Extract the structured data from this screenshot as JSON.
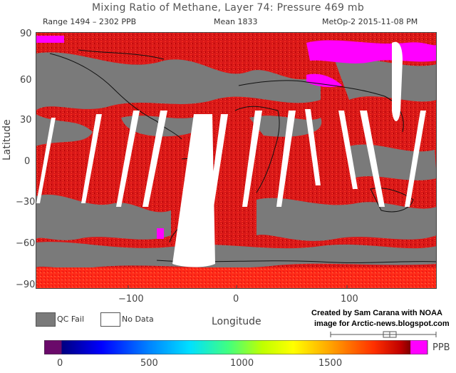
{
  "header": {
    "title": "Mixing Ratio of Methane, Layer 74: Pressure 469 mb",
    "range": "Range 1494 – 2302 PPB",
    "mean": "Mean 1833",
    "satellite": "MetOp-2 2015-11-08 PM"
  },
  "axes": {
    "ylabel": "Latitude",
    "xlabel": "Longitude",
    "y_ticks": [
      "90",
      "60",
      "30",
      "0",
      "−30",
      "−60",
      "−90"
    ],
    "x_ticks": [
      "−100",
      "0",
      "100"
    ]
  },
  "legend": {
    "qc_fail_label": "QC Fail",
    "no_data_label": "No Data",
    "qc_fail_color": "#7a7a7a",
    "no_data_color": "#ffffff"
  },
  "credit": {
    "line1": "Created by Sam Carana with NOAA",
    "line2": "image for Arctic-news.blogspot.com"
  },
  "colorbar": {
    "unit": "PPB",
    "ticks": [
      "0",
      "500",
      "1000",
      "1500"
    ],
    "stops": [
      "#6a0a6a",
      "#000080",
      "#0000ff",
      "#0080ff",
      "#00e0ff",
      "#40ff80",
      "#c0ff00",
      "#ffff00",
      "#ffa000",
      "#ff3000",
      "#c00000",
      "#800000",
      "#ff00ff"
    ]
  },
  "map": {
    "dominant_color": "#d81818",
    "missing_color": "#7a7a7a",
    "high_color": "#ff00ff"
  }
}
